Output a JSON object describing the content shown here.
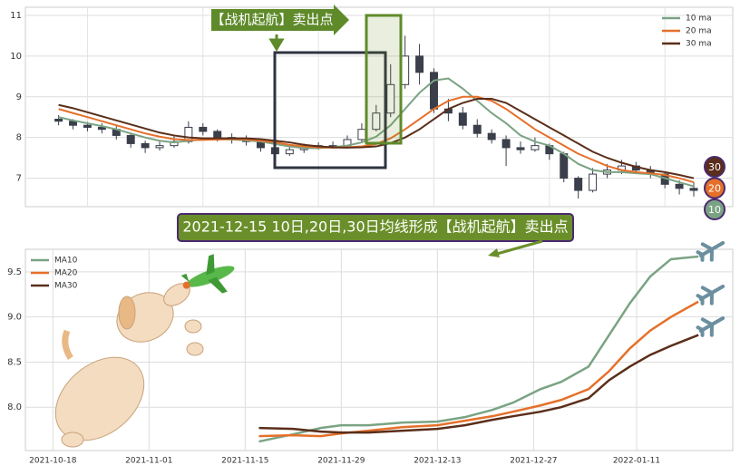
{
  "chart_data": [
    {
      "type": "candlestick",
      "ohlc": [
        [
          8.45,
          8.55,
          8.3,
          8.4
        ],
        [
          8.4,
          8.45,
          8.2,
          8.3
        ],
        [
          8.3,
          8.38,
          8.15,
          8.25
        ],
        [
          8.25,
          8.35,
          8.1,
          8.2
        ],
        [
          8.2,
          8.28,
          7.95,
          8.05
        ],
        [
          8.05,
          8.1,
          7.75,
          7.85
        ],
        [
          7.85,
          7.92,
          7.62,
          7.75
        ],
        [
          7.75,
          7.9,
          7.68,
          7.8
        ],
        [
          7.8,
          8.05,
          7.75,
          7.9
        ],
        [
          7.9,
          8.4,
          7.85,
          8.25
        ],
        [
          8.25,
          8.35,
          8.05,
          8.15
        ],
        [
          8.15,
          8.2,
          7.9,
          8.0
        ],
        [
          8.0,
          8.1,
          7.85,
          7.95
        ],
        [
          7.95,
          8.05,
          7.8,
          7.9
        ],
        [
          7.9,
          7.95,
          7.65,
          7.75
        ],
        [
          7.75,
          7.8,
          7.5,
          7.6
        ],
        [
          7.6,
          7.8,
          7.55,
          7.7
        ],
        [
          7.7,
          7.85,
          7.62,
          7.75
        ],
        [
          7.75,
          7.88,
          7.7,
          7.8
        ],
        [
          7.8,
          7.9,
          7.72,
          7.8
        ],
        [
          7.8,
          8.05,
          7.75,
          7.95
        ],
        [
          7.95,
          8.35,
          7.9,
          8.2
        ],
        [
          8.2,
          8.8,
          8.15,
          8.6
        ],
        [
          8.6,
          9.8,
          8.5,
          9.3
        ],
        [
          9.3,
          10.5,
          9.2,
          10.0
        ],
        [
          10.0,
          10.3,
          9.3,
          9.6
        ],
        [
          9.6,
          9.7,
          8.6,
          8.7
        ],
        [
          8.7,
          8.95,
          8.4,
          8.6
        ],
        [
          8.6,
          8.75,
          8.2,
          8.3
        ],
        [
          8.3,
          8.45,
          8.0,
          8.1
        ],
        [
          8.1,
          8.2,
          7.85,
          7.95
        ],
        [
          7.95,
          8.05,
          7.3,
          7.75
        ],
        [
          7.75,
          7.9,
          7.6,
          7.7
        ],
        [
          7.7,
          8.0,
          7.65,
          7.8
        ],
        [
          7.8,
          7.85,
          7.45,
          7.6
        ],
        [
          7.6,
          7.65,
          6.9,
          7.0
        ],
        [
          7.0,
          7.05,
          6.5,
          6.7
        ],
        [
          6.7,
          7.25,
          6.65,
          7.1
        ],
        [
          7.1,
          7.35,
          7.0,
          7.2
        ],
        [
          7.2,
          7.45,
          7.1,
          7.3
        ],
        [
          7.3,
          7.4,
          7.1,
          7.2
        ],
        [
          7.2,
          7.3,
          7.0,
          7.1
        ],
        [
          7.1,
          7.15,
          6.75,
          6.85
        ],
        [
          6.85,
          6.95,
          6.6,
          6.75
        ],
        [
          6.75,
          6.9,
          6.55,
          6.7
        ]
      ],
      "candle_color": "#3a3f4b",
      "series": [
        {
          "name": "10 ma",
          "color": "#7aa383",
          "values": [
            8.5,
            8.42,
            8.35,
            8.28,
            8.2,
            8.1,
            8.0,
            7.92,
            7.88,
            7.92,
            7.95,
            7.96,
            7.95,
            7.93,
            7.9,
            7.84,
            7.78,
            7.74,
            7.74,
            7.76,
            7.8,
            7.88,
            8.02,
            8.3,
            8.7,
            9.1,
            9.4,
            9.45,
            9.2,
            8.9,
            8.6,
            8.35,
            8.05,
            7.9,
            7.8,
            7.6,
            7.35,
            7.2,
            7.15,
            7.15,
            7.12,
            7.1,
            7.0,
            6.9,
            6.8
          ]
        },
        {
          "name": "20 ma",
          "color": "#e5702a",
          "values": [
            8.7,
            8.6,
            8.5,
            8.4,
            8.3,
            8.2,
            8.1,
            8.02,
            7.96,
            7.94,
            7.94,
            7.95,
            7.96,
            7.95,
            7.92,
            7.88,
            7.82,
            7.78,
            7.76,
            7.75,
            7.76,
            7.78,
            7.84,
            7.98,
            8.2,
            8.45,
            8.7,
            8.9,
            9.0,
            9.0,
            8.9,
            8.7,
            8.45,
            8.2,
            8.0,
            7.8,
            7.6,
            7.45,
            7.3,
            7.2,
            7.15,
            7.12,
            7.08,
            7.0,
            6.9
          ]
        },
        {
          "name": "30 ma",
          "color": "#5a2e1a",
          "values": [
            8.8,
            8.72,
            8.62,
            8.52,
            8.42,
            8.32,
            8.22,
            8.12,
            8.05,
            8.0,
            7.98,
            7.98,
            7.98,
            7.98,
            7.96,
            7.92,
            7.88,
            7.82,
            7.78,
            7.76,
            7.75,
            7.76,
            7.78,
            7.86,
            8.0,
            8.2,
            8.45,
            8.7,
            8.85,
            8.95,
            8.95,
            8.85,
            8.65,
            8.45,
            8.25,
            8.05,
            7.85,
            7.65,
            7.5,
            7.38,
            7.28,
            7.2,
            7.15,
            7.08,
            7.0
          ]
        }
      ],
      "xlim": [
        -2.3,
        46.7
      ],
      "ylim": [
        6.3,
        11.2
      ],
      "yticks": [
        7,
        8,
        9,
        10,
        11
      ],
      "grid": true,
      "legend": "upper right"
    },
    {
      "type": "line",
      "x": [
        "2021-11-17",
        "2021-11-22",
        "2021-11-26",
        "2021-11-29",
        "2021-12-03",
        "2021-12-08",
        "2021-12-13",
        "2021-12-17",
        "2021-12-21",
        "2021-12-24",
        "2021-12-28",
        "2021-12-31",
        "2022-01-04",
        "2022-01-07",
        "2022-01-10",
        "2022-01-13",
        "2022-01-16",
        "2022-01-20"
      ],
      "series": [
        {
          "name": "MA10",
          "color": "#7aa383",
          "values": [
            7.62,
            7.7,
            7.77,
            7.8,
            7.8,
            7.83,
            7.84,
            7.89,
            7.97,
            8.05,
            8.2,
            8.28,
            8.45,
            8.8,
            9.15,
            9.45,
            9.64,
            9.67
          ]
        },
        {
          "name": "MA20",
          "color": "#e5702a",
          "values": [
            7.68,
            7.69,
            7.68,
            7.71,
            7.74,
            7.78,
            7.8,
            7.85,
            7.9,
            7.95,
            8.02,
            8.08,
            8.2,
            8.4,
            8.65,
            8.85,
            9.0,
            9.17
          ]
        },
        {
          "name": "MA30",
          "color": "#5a2e1a",
          "values": [
            7.77,
            7.76,
            7.73,
            7.72,
            7.72,
            7.74,
            7.76,
            7.8,
            7.86,
            7.9,
            7.95,
            8.0,
            8.1,
            8.3,
            8.45,
            8.58,
            8.68,
            8.8
          ]
        }
      ],
      "xlim": [
        "2021-10-14",
        "2022-01-25"
      ],
      "xticks": [
        "2021-10-18",
        "2021-11-01",
        "2021-11-15",
        "2021-11-29",
        "2021-12-13",
        "2021-12-27",
        "2022-01-11"
      ],
      "ylim": [
        7.52,
        9.75
      ],
      "yticks": [
        {
          "value": 8,
          "label": "8.0"
        },
        {
          "value": 8.5,
          "label": "8.5"
        },
        {
          "value": 9,
          "label": "9.0"
        },
        {
          "value": 9.5,
          "label": "9.5"
        }
      ],
      "grid": true,
      "legend": "upper left"
    }
  ],
  "annotations": {
    "top_label": "【战机起航】卖出点",
    "banner": "2021-12-15 10日,20日,30日均线形成【战机起航】卖出点",
    "badges": [
      "30",
      "20",
      "10"
    ]
  }
}
